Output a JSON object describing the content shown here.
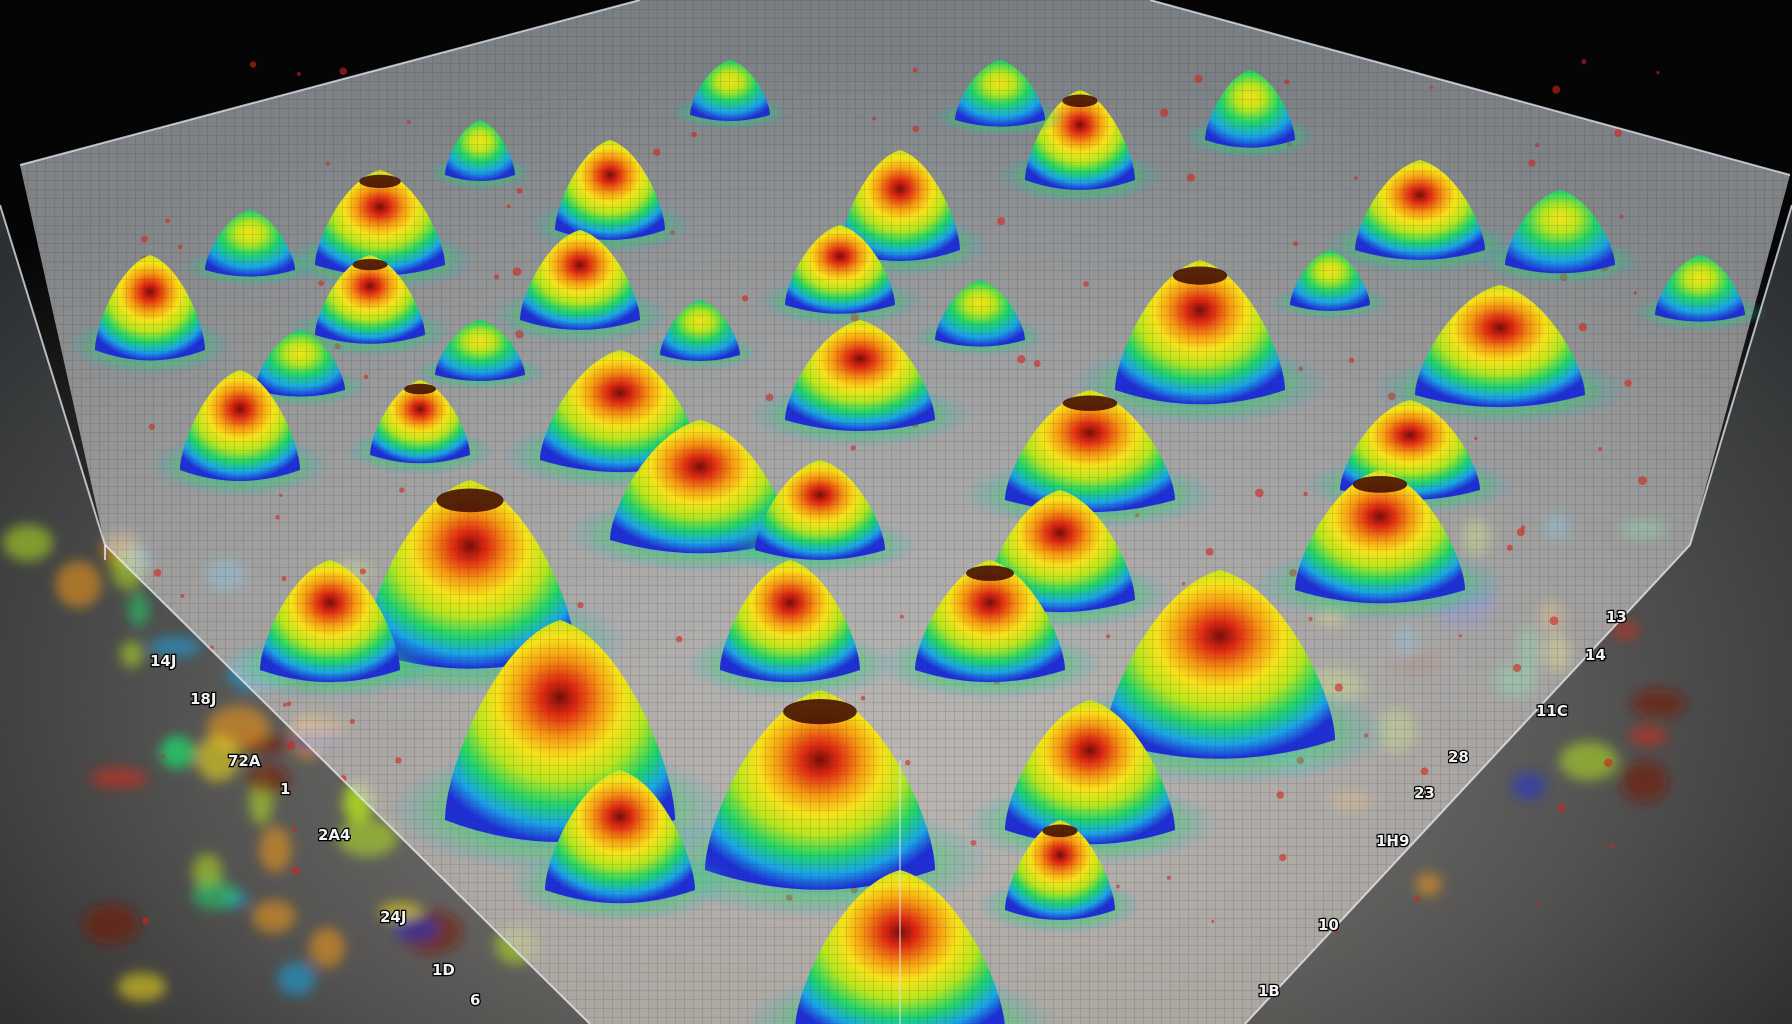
{
  "scene": {
    "subject": "3d-surface-plot-render",
    "palette": {
      "background_top": "#050505",
      "background_floor": "#6e6b66",
      "glass_edge": "#e8eef5",
      "colormap": [
        "#1f2fd6",
        "#1aa6e6",
        "#22d46a",
        "#b7e61d",
        "#f7e21a",
        "#f79a12",
        "#e02a12",
        "#7a0c08"
      ]
    },
    "edge_labels": {
      "left": [
        "14J",
        "18J",
        "72A",
        "1",
        "2A4",
        "24J",
        "1D",
        "6"
      ],
      "right": [
        "13",
        "14",
        "11C",
        "28",
        "23",
        "1H9",
        "10",
        "1B"
      ]
    }
  }
}
